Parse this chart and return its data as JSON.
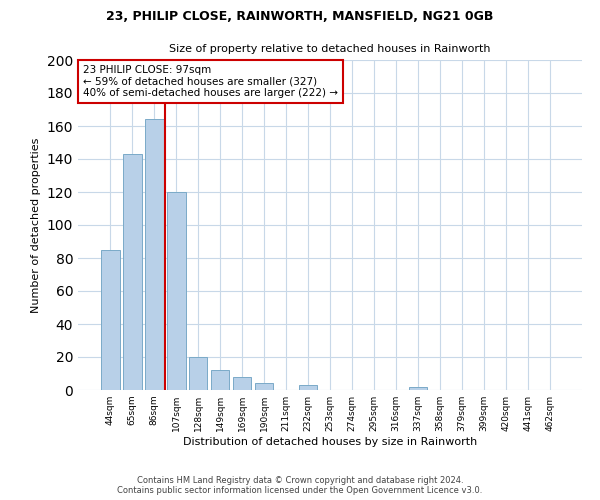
{
  "title1": "23, PHILIP CLOSE, RAINWORTH, MANSFIELD, NG21 0GB",
  "title2": "Size of property relative to detached houses in Rainworth",
  "xlabel": "Distribution of detached houses by size in Rainworth",
  "ylabel": "Number of detached properties",
  "categories": [
    "44sqm",
    "65sqm",
    "86sqm",
    "107sqm",
    "128sqm",
    "149sqm",
    "169sqm",
    "190sqm",
    "211sqm",
    "232sqm",
    "253sqm",
    "274sqm",
    "295sqm",
    "316sqm",
    "337sqm",
    "358sqm",
    "379sqm",
    "399sqm",
    "420sqm",
    "441sqm",
    "462sqm"
  ],
  "values": [
    85,
    143,
    164,
    120,
    20,
    12,
    8,
    4,
    0,
    3,
    0,
    0,
    0,
    0,
    2,
    0,
    0,
    0,
    0,
    0,
    0
  ],
  "bar_color": "#b8d0e8",
  "bar_edge_color": "#7aaac8",
  "vline_x": 2.5,
  "vline_color": "#cc0000",
  "annotation_title": "23 PHILIP CLOSE: 97sqm",
  "annotation_line1": "← 59% of detached houses are smaller (327)",
  "annotation_line2": "40% of semi-detached houses are larger (222) →",
  "annotation_box_color": "#cc0000",
  "ylim": [
    0,
    200
  ],
  "yticks": [
    0,
    20,
    40,
    60,
    80,
    100,
    120,
    140,
    160,
    180,
    200
  ],
  "footer1": "Contains HM Land Registry data © Crown copyright and database right 2024.",
  "footer2": "Contains public sector information licensed under the Open Government Licence v3.0.",
  "bg_color": "#ffffff",
  "grid_color": "#c8d8e8"
}
